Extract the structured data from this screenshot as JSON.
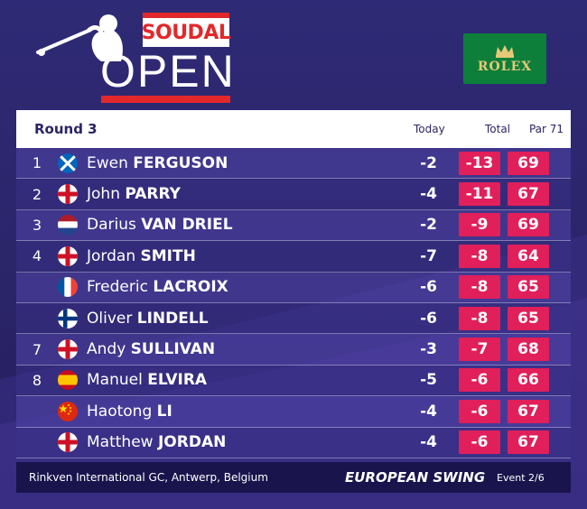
{
  "brand": {
    "sponsor": "SOUDAL",
    "event_word": "OPEN",
    "partner": "ROLEX",
    "colors": {
      "red": "#e2282a",
      "pink_box": "#e01f5b",
      "rolex_green": "#0d7f3a",
      "rolex_gold": "#e6c878",
      "navy": "#2b2466"
    }
  },
  "table": {
    "round_label": "Round 3",
    "col_today": "Today",
    "col_total": "Total",
    "col_par": "Par 71",
    "rows": [
      {
        "pos": "1",
        "flag": "scotland",
        "first": "Ewen",
        "last": "FERGUSON",
        "today": "-2",
        "total": "-13",
        "round": "69"
      },
      {
        "pos": "2",
        "flag": "england",
        "first": "John",
        "last": "PARRY",
        "today": "-4",
        "total": "-11",
        "round": "67"
      },
      {
        "pos": "3",
        "flag": "netherlands",
        "first": "Darius",
        "last": "VAN DRIEL",
        "today": "-2",
        "total": "-9",
        "round": "69"
      },
      {
        "pos": "4",
        "flag": "england",
        "first": "Jordan",
        "last": "SMITH",
        "today": "-7",
        "total": "-8",
        "round": "64"
      },
      {
        "pos": "",
        "flag": "france",
        "first": "Frederic",
        "last": "LACROIX",
        "today": "-6",
        "total": "-8",
        "round": "65"
      },
      {
        "pos": "",
        "flag": "finland",
        "first": "Oliver",
        "last": "LINDELL",
        "today": "-6",
        "total": "-8",
        "round": "65"
      },
      {
        "pos": "7",
        "flag": "england",
        "first": "Andy",
        "last": "SULLIVAN",
        "today": "-3",
        "total": "-7",
        "round": "68"
      },
      {
        "pos": "8",
        "flag": "spain",
        "first": "Manuel",
        "last": "ELVIRA",
        "today": "-5",
        "total": "-6",
        "round": "66"
      },
      {
        "pos": "",
        "flag": "china",
        "first": "Haotong",
        "last": "LI",
        "today": "-4",
        "total": "-6",
        "round": "67"
      },
      {
        "pos": "",
        "flag": "england",
        "first": "Matthew",
        "last": "JORDAN",
        "today": "-4",
        "total": "-6",
        "round": "67"
      }
    ]
  },
  "footer": {
    "venue": "Rinkven International GC, Antwerp, Belgium",
    "series": "EUROPEAN SWING",
    "event_count": "Event 2/6"
  }
}
